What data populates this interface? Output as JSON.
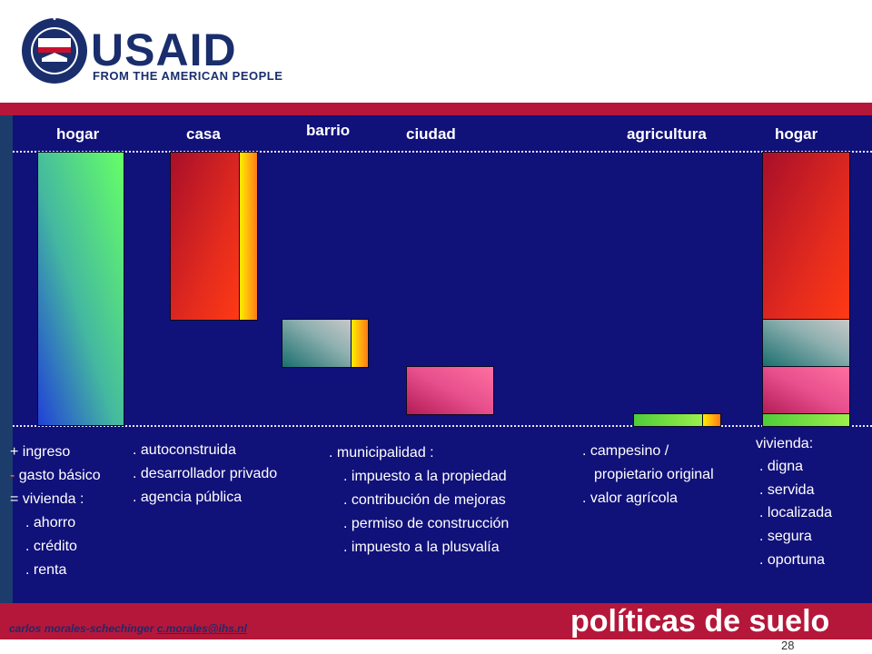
{
  "header": {
    "logo_word": "USAID",
    "logo_tagline": "FROM THE AMERICAN PEOPLE",
    "seal_text": "UNITED STATES AGENCY · INTERNATIONAL DEVELOPMENT"
  },
  "columns": [
    {
      "label": "hogar"
    },
    {
      "label": "casa"
    },
    {
      "label": "barrio"
    },
    {
      "label": "ciudad"
    },
    {
      "label": "agricultura"
    },
    {
      "label": "hogar"
    }
  ],
  "notes": {
    "hogar": [
      "+ ingreso",
      "gasto básico",
      "= vivienda :",
      ". ahorro",
      ". crédito",
      ". renta"
    ],
    "hogar_minus": "-",
    "casa": [
      ". autoconstruida",
      ". desarrollador privado",
      ". agencia pública"
    ],
    "ciudad": [
      ". municipalidad :",
      ". impuesto a la propiedad",
      ". contribución de mejoras",
      ". permiso de construcción",
      ". impuesto a la plusvalía"
    ],
    "agricultura": [
      ". campesino /",
      "propietario original",
      ". valor agrícola"
    ],
    "vivienda": [
      "vivienda:",
      ". digna",
      ". servida",
      ". localizada",
      ". segura",
      ". oportuna"
    ]
  },
  "footer": {
    "author": "carlos morales-schechinger",
    "email": "c.morales@ihs.nl",
    "title": "políticas de suelo",
    "page": "28"
  },
  "colors": {
    "crimson": "#b5173a",
    "navy": "#11117a",
    "logo_blue": "#1a2e6d"
  }
}
